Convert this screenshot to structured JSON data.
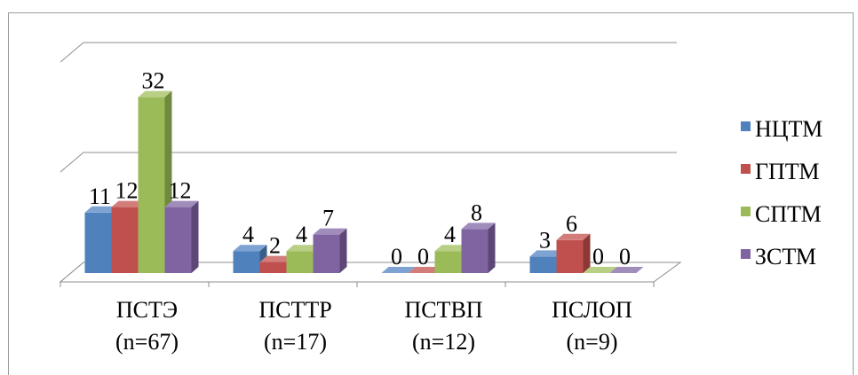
{
  "chart_data": {
    "type": "bar",
    "categories": [
      [
        "ПСТЭ",
        "(n=67)"
      ],
      [
        "ПСТТР",
        "(n=17)"
      ],
      [
        "ПСТВП",
        "(n=12)"
      ],
      [
        "ПСЛОП",
        "(n=9)"
      ]
    ],
    "series": [
      {
        "name": "НЦТМ",
        "values": [
          11,
          4,
          0,
          3
        ],
        "color": "#4F81BD",
        "side_color": "#385D8A",
        "top_color": "#7EA3D3"
      },
      {
        "name": "ГПТМ",
        "values": [
          12,
          2,
          0,
          6
        ],
        "color": "#C0504D",
        "side_color": "#8C3836",
        "top_color": "#D27D7A"
      },
      {
        "name": "СПТМ",
        "values": [
          32,
          4,
          4,
          0
        ],
        "color": "#9BBB59",
        "side_color": "#71893F",
        "top_color": "#B8CF85"
      },
      {
        "name": "ЗСТМ",
        "values": [
          12,
          7,
          8,
          0
        ],
        "color": "#8064A2",
        "side_color": "#5C4776",
        "top_color": "#A08DBC"
      }
    ],
    "ylim": [
      0,
      40
    ],
    "grid": true,
    "legend_position": "right",
    "data_labels": true,
    "style": "3d-clustered-column"
  }
}
